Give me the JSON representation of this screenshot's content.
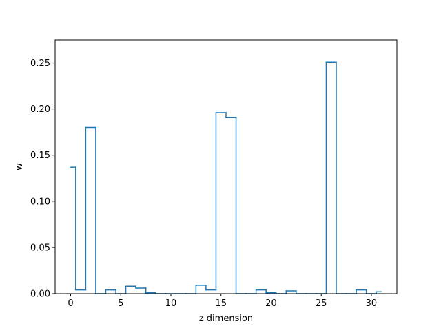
{
  "chart_data": {
    "type": "step",
    "title": "",
    "xlabel": "z dimension",
    "ylabel": "w",
    "xlim": [
      -1.55,
      32.55
    ],
    "ylim": [
      0.0,
      0.275
    ],
    "x_ticks": [
      0,
      5,
      10,
      15,
      20,
      25,
      30
    ],
    "x_tick_labels": [
      "0",
      "5",
      "10",
      "15",
      "20",
      "25",
      "30"
    ],
    "y_ticks": [
      0.0,
      0.05,
      0.1,
      0.15,
      0.2,
      0.25
    ],
    "y_tick_labels": [
      "0.00",
      "0.05",
      "0.10",
      "0.15",
      "0.20",
      "0.25"
    ],
    "grid": false,
    "series": [
      {
        "color": "#1f77b4",
        "x": [
          0,
          1,
          2,
          3,
          4,
          5,
          6,
          7,
          8,
          9,
          10,
          11,
          12,
          13,
          14,
          15,
          16,
          17,
          18,
          19,
          20,
          21,
          22,
          23,
          24,
          25,
          26,
          27,
          28,
          29,
          30,
          31
        ],
        "values": [
          0.137,
          0.004,
          0.18,
          0.0,
          0.004,
          0.0,
          0.008,
          0.006,
          0.001,
          0.0,
          0.0,
          0.0,
          0.0,
          0.009,
          0.004,
          0.196,
          0.191,
          0.0,
          0.0,
          0.004,
          0.001,
          0.0,
          0.003,
          0.0,
          0.0,
          0.0,
          0.251,
          0.0,
          0.0,
          0.004,
          0.0,
          0.002
        ]
      }
    ]
  }
}
